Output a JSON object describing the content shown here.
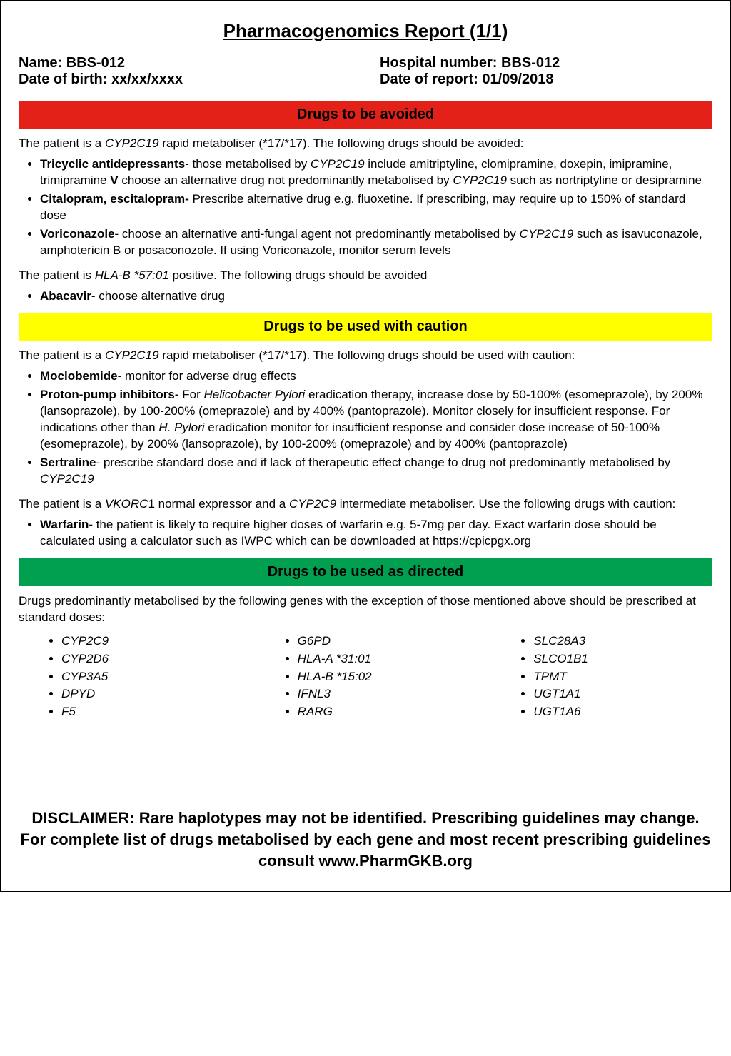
{
  "title": "Pharmacogenomics Report (1/1)",
  "patient": {
    "name_label": "Name: BBS-012",
    "dob_label": "Date of birth: xx/xx/xxxx",
    "hospital_label": "Hospital number: BBS-012",
    "report_date_label": "Date of report: 01/09/2018"
  },
  "colors": {
    "red": "#e32118",
    "yellow": "#ffff00",
    "green": "#00a050",
    "text": "#000000",
    "background": "#ffffff"
  },
  "sections": {
    "avoid": {
      "header": "Drugs to be avoided",
      "intro1_pre": "The patient is a ",
      "intro1_gene": "CYP2C19",
      "intro1_post": " rapid metaboliser (*17/*17). The following drugs should be avoided:",
      "items1": {
        "tricyclic": {
          "bold": "Tricyclic antidepressants",
          "text1": "- those metabolised by ",
          "gene": "CYP2C19",
          "text2": " include amitriptyline, clomipramine, doxepin, imipramine, trimipramine ",
          "v": "V",
          "text3": " choose an alternative drug not predominantly metabolised by ",
          "gene2": "CYP2C19",
          "text4": " such as nortriptyline or desipramine"
        },
        "citalopram": {
          "bold": "Citalopram, escitalopram-",
          "text": " Prescribe alternative drug e.g. fluoxetine. If prescribing, may require up to 150% of standard dose"
        },
        "voriconazole": {
          "bold": "Voriconazole",
          "text1": "- choose an alternative anti-fungal agent not predominantly metabolised by ",
          "gene": "CYP2C19",
          "text2": " such as isavuconazole, amphotericin B or posaconozole. If using Voriconazole, monitor serum levels"
        }
      },
      "intro2_pre": "The patient is  ",
      "intro2_gene": "HLA-B *57:01",
      "intro2_post": " positive. The following drugs should be avoided",
      "items2": {
        "abacavir": {
          "bold": "Abacavir",
          "text": "- choose alternative drug"
        }
      }
    },
    "caution": {
      "header": "Drugs to be used with caution",
      "intro1_pre": "The patient is a ",
      "intro1_gene": "CYP2C19",
      "intro1_post": " rapid metaboliser (*17/*17). The following drugs should be used with caution:",
      "items1": {
        "moclobemide": {
          "bold": "Moclobemide",
          "text": "- monitor for adverse drug effects"
        },
        "ppi": {
          "bold": "Proton-pump inhibitors-",
          "text1": " For ",
          "italic1": "Helicobacter Pylori",
          "text2": " eradication therapy, increase dose by 50-100% (esomeprazole), by 200% (lansoprazole), by 100-200% (omeprazole) and by 400% (pantoprazole). Monitor closely for insufficient response. For indications other than ",
          "italic2": "H. Pylori",
          "text3": " eradication monitor for insufficient response and consider dose increase of 50-100% (esomeprazole), by 200% (lansoprazole), by 100-200% (omeprazole) and by 400% (pantoprazole)"
        },
        "sertraline": {
          "bold": "Sertraline",
          "text1": "- prescribe standard dose and if lack of therapeutic effect change to drug not predominantly metabolised by ",
          "gene": "CYP2C19"
        }
      },
      "intro2_pre": "The patient is a ",
      "intro2_gene1": "VKORC",
      "intro2_mid1": "1 normal expressor and a ",
      "intro2_gene2": "CYP2C9",
      "intro2_post": " intermediate metaboliser. Use the following drugs with caution:",
      "items2": {
        "warfarin": {
          "bold": "Warfarin",
          "text": "- the patient is likely to require higher doses of warfarin e.g. 5-7mg per day. Exact warfarin dose should be calculated using a calculator such as IWPC which can be downloaded at https://cpicpgx.org"
        }
      }
    },
    "directed": {
      "header": "Drugs to be used as directed",
      "intro": "Drugs predominantly metabolised by the following genes with the exception of those mentioned above should be prescribed at standard doses:",
      "genes_col1": [
        "CYP2C9",
        "CYP2D6",
        "CYP3A5",
        "DPYD",
        "F5"
      ],
      "genes_col2": [
        "G6PD",
        "HLA-A *31:01",
        "HLA-B *15:02",
        "IFNL3",
        "RARG"
      ],
      "genes_col3": [
        "SLC28A3",
        "SLCO1B1",
        "TPMT",
        "UGT1A1",
        "UGT1A6"
      ]
    }
  },
  "disclaimer": "DISCLAIMER: Rare haplotypes may not be identified. Prescribing guidelines may change. For complete list of  drugs metabolised by each gene and most recent prescribing guidelines consult www.PharmGKB.org"
}
